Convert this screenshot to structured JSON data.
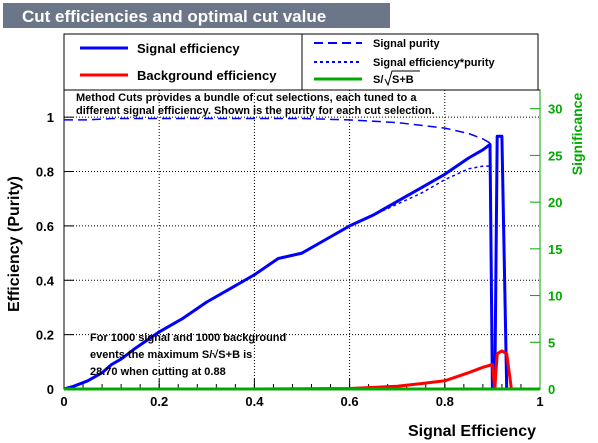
{
  "chart_data": {
    "type": "line",
    "title": "Cut efficiencies and optimal cut value",
    "xlabel": "Signal Efficiency",
    "ylabel": "Efficiency (Purity)",
    "y2label": "Significance",
    "xlim": [
      0,
      1
    ],
    "ylim": [
      0,
      1.1
    ],
    "y2lim": [
      0,
      32
    ],
    "x_ticks": [
      "0",
      "0.2",
      "0.4",
      "0.6",
      "0.8",
      "1"
    ],
    "y_ticks": [
      "0",
      "0.2",
      "0.4",
      "0.6",
      "0.8",
      "1"
    ],
    "y2_ticks": [
      "0",
      "5",
      "10",
      "15",
      "20",
      "25",
      "30"
    ],
    "grid": true,
    "legend_placement": "top",
    "colors": {
      "signal": "#0000ff",
      "background": "#ff0000",
      "significance": "#00aa00",
      "title_bg": "#6b7688"
    },
    "series": [
      {
        "name": "Signal efficiency",
        "style": "solid",
        "color": "#0000ff",
        "x": [
          0,
          0.02,
          0.05,
          0.08,
          0.1,
          0.12,
          0.15,
          0.2,
          0.25,
          0.3,
          0.35,
          0.4,
          0.45,
          0.5,
          0.55,
          0.6,
          0.65,
          0.7,
          0.75,
          0.8,
          0.85,
          0.88,
          0.895,
          0.9,
          0.905,
          0.91,
          0.915,
          0.92,
          0.93,
          0.94,
          1.0
        ],
        "values": [
          0,
          0.01,
          0.03,
          0.06,
          0.09,
          0.11,
          0.15,
          0.21,
          0.26,
          0.32,
          0.37,
          0.42,
          0.48,
          0.5,
          0.55,
          0.6,
          0.64,
          0.69,
          0.74,
          0.79,
          0.85,
          0.88,
          0.9,
          0.0,
          0.0,
          0.93,
          0.93,
          0.93,
          0.0,
          0.0,
          0.0
        ]
      },
      {
        "name": "Background efficiency",
        "style": "solid",
        "color": "#ff0000",
        "x": [
          0,
          0.2,
          0.4,
          0.6,
          0.7,
          0.75,
          0.8,
          0.85,
          0.88,
          0.9,
          0.905,
          0.91,
          0.92,
          0.93,
          0.94,
          1.0
        ],
        "values": [
          0,
          0.0,
          0.0,
          0.002,
          0.01,
          0.02,
          0.03,
          0.06,
          0.08,
          0.09,
          0.0,
          0.13,
          0.14,
          0.13,
          0.0,
          0.0
        ]
      },
      {
        "name": "Signal purity",
        "style": "dashed",
        "color": "#0000ff",
        "x": [
          0,
          0.05,
          0.1,
          0.3,
          0.5,
          0.6,
          0.7,
          0.8,
          0.85,
          0.88,
          0.9
        ],
        "values": [
          0.99,
          0.99,
          0.995,
          0.995,
          0.995,
          0.99,
          0.98,
          0.96,
          0.94,
          0.92,
          0.9
        ]
      },
      {
        "name": "Signal efficiency*purity",
        "style": "dotted",
        "color": "#0000ff",
        "x": [
          0.6,
          0.65,
          0.7,
          0.75,
          0.8,
          0.85,
          0.88,
          0.9
        ],
        "values": [
          0.6,
          0.64,
          0.68,
          0.72,
          0.77,
          0.81,
          0.82,
          0.82
        ]
      },
      {
        "name": "S/√S+B",
        "style": "solid",
        "color": "#00aa00",
        "x": [
          0,
          0.5,
          1.0
        ],
        "values": [
          0,
          0,
          0
        ]
      }
    ],
    "annotations": {
      "method_note": "Method Cuts provides a bundle of cut selections, each tuned to a different signal efficiency. Shown is the purity for each cut selection.",
      "result_line1": "For 1000 signal and 1000 background",
      "result_line2": "events the maximum S/√S+B is",
      "result_line3": "28.70 when cutting at  0.88"
    }
  },
  "legend": {
    "signal_efficiency": "Signal efficiency",
    "background_efficiency": "Background efficiency",
    "signal_purity": "Signal purity",
    "signal_eff_purity": "Signal efficiency*purity",
    "significance_prefix": "S/",
    "significance_radicand": "S+B"
  }
}
